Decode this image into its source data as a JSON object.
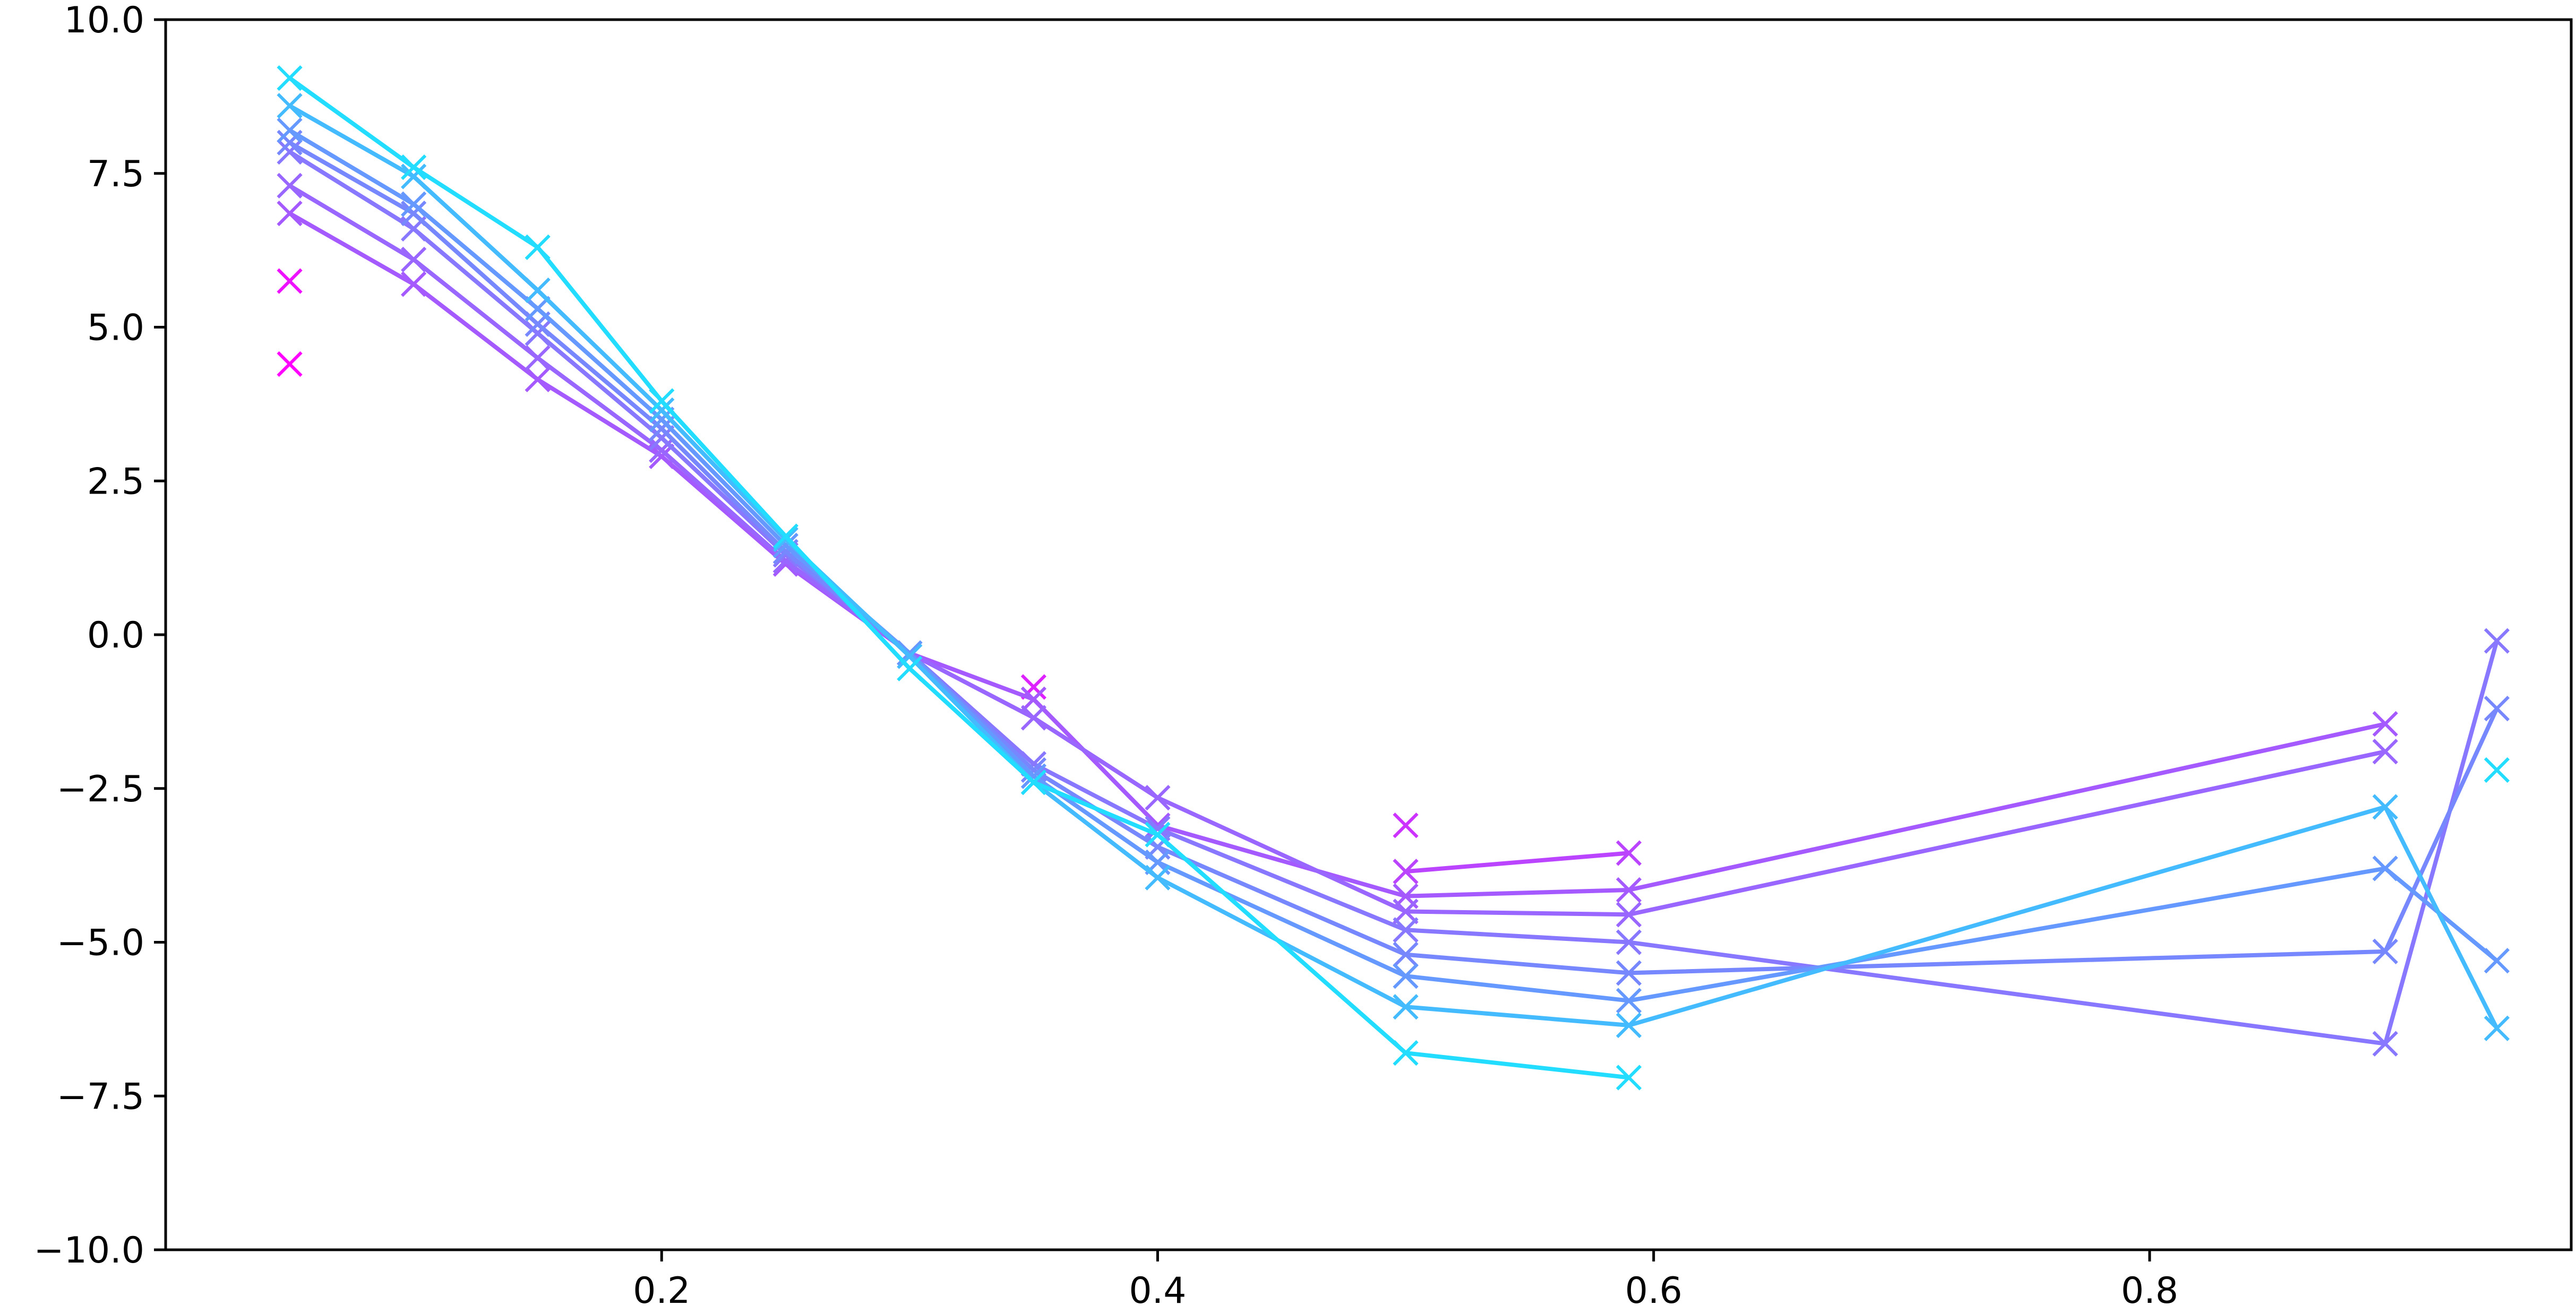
{
  "chart_data": {
    "type": "line",
    "title": "",
    "xlabel": "",
    "ylabel": "",
    "xlim": [
      0.0,
      0.97
    ],
    "ylim": [
      -10.0,
      10.0
    ],
    "grid": false,
    "legend": "none",
    "marker": "x",
    "x_ticks": [
      {
        "value": 0.2,
        "label": "0.2"
      },
      {
        "value": 0.4,
        "label": "0.4"
      },
      {
        "value": 0.6,
        "label": "0.6"
      },
      {
        "value": 0.8,
        "label": "0.8"
      }
    ],
    "y_ticks": [
      {
        "value": 10.0,
        "label": "10.0"
      },
      {
        "value": 7.5,
        "label": "7.5"
      },
      {
        "value": 5.0,
        "label": "5.0"
      },
      {
        "value": 2.5,
        "label": "2.5"
      },
      {
        "value": 0.0,
        "label": "0.0"
      },
      {
        "value": -2.5,
        "label": "−2.5"
      },
      {
        "value": -5.0,
        "label": "−5.0"
      },
      {
        "value": -7.5,
        "label": "−7.5"
      },
      {
        "value": -10.0,
        "label": "−10.0"
      }
    ],
    "series": [
      {
        "color": "#ff00ff",
        "points": [
          [
            0.05,
            4.4
          ]
        ]
      },
      {
        "color": "#ee11ff",
        "points": [
          [
            0.05,
            5.75
          ]
        ]
      },
      {
        "color": "#dd22ff",
        "points": [
          [
            0.35,
            -0.85
          ]
        ]
      },
      {
        "color": "#cc33ff",
        "points": [
          [
            0.5,
            -3.1
          ]
        ]
      },
      {
        "color": "#bb44ff",
        "points": [
          [
            0.5,
            -3.85
          ],
          [
            0.59,
            -3.55
          ]
        ]
      },
      {
        "color": "#a55aff",
        "points": [
          [
            0.05,
            6.85
          ],
          [
            0.1,
            5.7
          ],
          [
            0.15,
            4.15
          ],
          [
            0.2,
            2.9
          ],
          [
            0.25,
            1.15
          ],
          [
            0.3,
            -0.3
          ],
          [
            0.35,
            -1.05
          ],
          [
            0.4,
            -3.1
          ],
          [
            0.5,
            -4.25
          ],
          [
            0.59,
            -4.15
          ],
          [
            0.895,
            -1.45
          ]
        ]
      },
      {
        "color": "#9966ff",
        "points": [
          [
            0.05,
            7.3
          ],
          [
            0.1,
            6.1
          ],
          [
            0.15,
            4.5
          ],
          [
            0.2,
            3.0
          ],
          [
            0.25,
            1.2
          ],
          [
            0.3,
            -0.3
          ],
          [
            0.35,
            -1.35
          ],
          [
            0.4,
            -2.65
          ],
          [
            0.5,
            -4.5
          ],
          [
            0.59,
            -4.55
          ],
          [
            0.895,
            -1.9
          ]
        ]
      },
      {
        "color": "#8877ff",
        "points": [
          [
            0.05,
            7.85
          ],
          [
            0.1,
            6.6
          ],
          [
            0.15,
            4.9
          ],
          [
            0.2,
            3.2
          ],
          [
            0.25,
            1.3
          ],
          [
            0.3,
            -0.3
          ],
          [
            0.35,
            -2.1
          ],
          [
            0.4,
            -3.15
          ],
          [
            0.5,
            -4.8
          ],
          [
            0.59,
            -5.0
          ],
          [
            0.895,
            -6.65
          ],
          [
            0.94,
            -0.1
          ]
        ]
      },
      {
        "color": "#7788ff",
        "points": [
          [
            0.05,
            8.0
          ],
          [
            0.1,
            6.85
          ],
          [
            0.15,
            5.05
          ],
          [
            0.2,
            3.35
          ],
          [
            0.25,
            1.35
          ],
          [
            0.3,
            -0.3
          ],
          [
            0.35,
            -2.2
          ],
          [
            0.4,
            -3.45
          ],
          [
            0.5,
            -5.2
          ],
          [
            0.59,
            -5.5
          ],
          [
            0.895,
            -5.15
          ],
          [
            0.94,
            -1.2
          ]
        ]
      },
      {
        "color": "#6699ff",
        "points": [
          [
            0.05,
            8.2
          ],
          [
            0.1,
            7.0
          ],
          [
            0.15,
            5.3
          ],
          [
            0.2,
            3.5
          ],
          [
            0.25,
            1.45
          ],
          [
            0.3,
            -0.3
          ],
          [
            0.35,
            -2.3
          ],
          [
            0.4,
            -3.7
          ],
          [
            0.5,
            -5.55
          ],
          [
            0.59,
            -5.95
          ],
          [
            0.895,
            -3.8
          ],
          [
            0.94,
            -5.3
          ]
        ]
      },
      {
        "color": "#44bbff",
        "points": [
          [
            0.05,
            8.6
          ],
          [
            0.1,
            7.45
          ],
          [
            0.15,
            5.6
          ],
          [
            0.2,
            3.65
          ],
          [
            0.25,
            1.55
          ],
          [
            0.3,
            -0.35
          ],
          [
            0.35,
            -2.4
          ],
          [
            0.4,
            -3.95
          ],
          [
            0.5,
            -6.05
          ],
          [
            0.59,
            -6.35
          ],
          [
            0.895,
            -2.8
          ],
          [
            0.94,
            -6.4
          ]
        ]
      },
      {
        "color": "#22ddff",
        "points": [
          [
            0.05,
            9.05
          ],
          [
            0.1,
            7.6
          ],
          [
            0.15,
            6.3
          ],
          [
            0.2,
            3.8
          ],
          [
            0.25,
            1.6
          ],
          [
            0.3,
            -0.55
          ],
          [
            0.35,
            -2.4
          ],
          [
            0.4,
            -3.25
          ],
          [
            0.5,
            -6.8
          ],
          [
            0.59,
            -7.2
          ]
        ]
      },
      {
        "color": "#22ddff",
        "points": [
          [
            0.94,
            -2.2
          ]
        ]
      }
    ]
  }
}
